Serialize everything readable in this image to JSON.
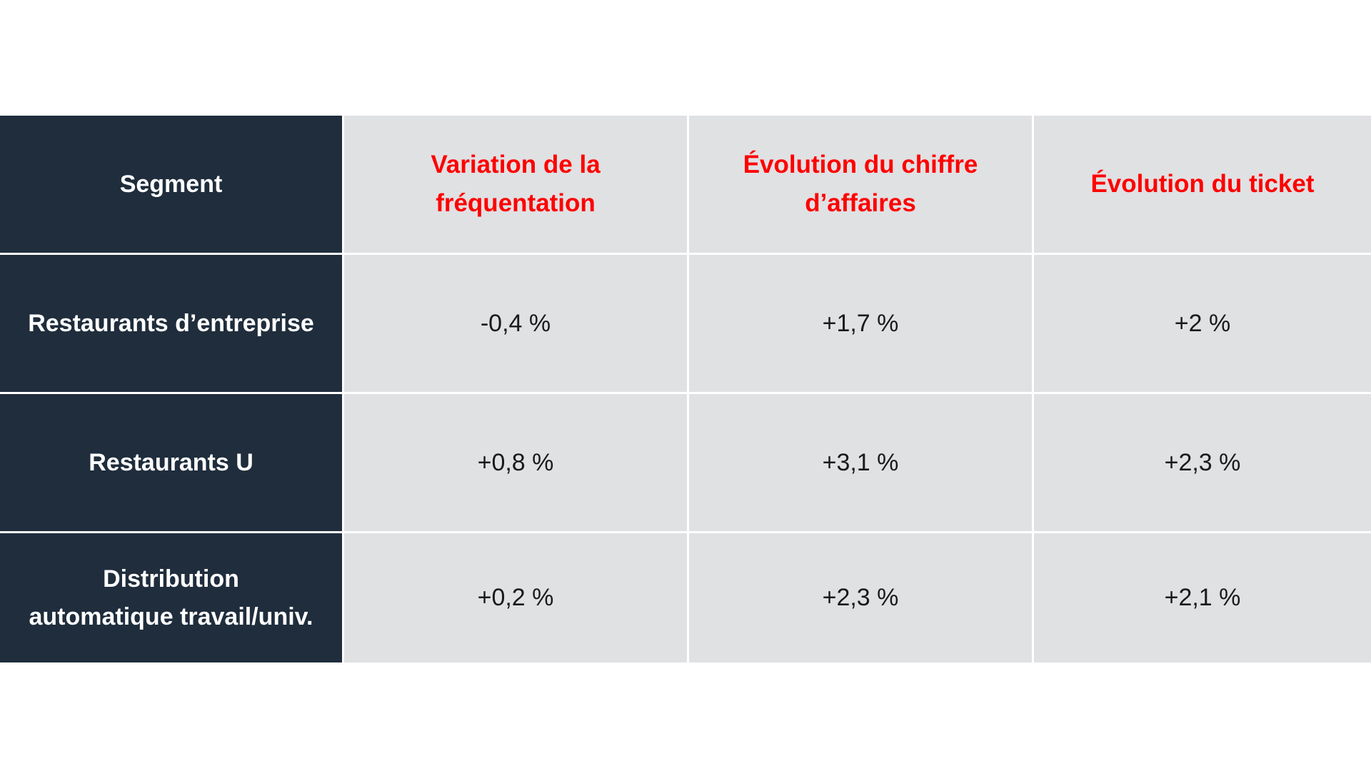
{
  "table": {
    "corner_header": "Segment",
    "headers": [
      "Variation de la fréquentation",
      "Évolution du chiffre d’affaires",
      "Évolution du ticket"
    ],
    "rows": [
      {
        "segment": "Restaurants d’entreprise",
        "values": [
          "-0,4 %",
          "+1,7 %",
          "+2 %"
        ]
      },
      {
        "segment": "Restaurants U",
        "values": [
          "+0,8 %",
          "+3,1 %",
          "+2,3 %"
        ]
      },
      {
        "segment": "Distribution automatique travail/univ.",
        "values": [
          "+0,2 %",
          "+2,3 %",
          "+2,1 %"
        ]
      }
    ]
  },
  "colors": {
    "segment_bg": "#1f2d3c",
    "header_text": "#ff0000",
    "cell_bg": "#e0e1e3"
  }
}
